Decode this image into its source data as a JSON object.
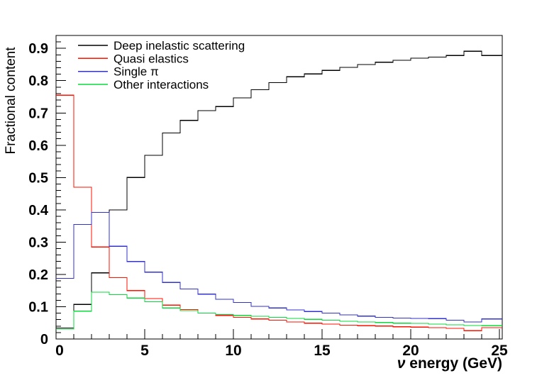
{
  "chart_data": {
    "type": "line",
    "subtype": "step-histogram-outlines",
    "title": "",
    "xlabel": "ν energy (GeV)",
    "xlabel_nu": "ν",
    "xlabel_rest": " energy (GeV)",
    "ylabel": "Fractional content",
    "xlim": [
      0,
      25.16
    ],
    "ylim": [
      0,
      0.94
    ],
    "grid": false,
    "legend_position": "top-left-inside",
    "bin_width_gev": 1,
    "bin_edges_start": 0,
    "x_major_ticks": [
      0,
      5,
      10,
      15,
      20,
      25
    ],
    "x_major_tick_labels": [
      "0",
      "5",
      "10",
      "15",
      "20",
      "25"
    ],
    "x_minor_tick_step": 1,
    "y_major_ticks": [
      0,
      0.1,
      0.2,
      0.3,
      0.4,
      0.5,
      0.6,
      0.7,
      0.8,
      0.9
    ],
    "y_major_tick_labels": [
      "0",
      "0.1",
      "0.2",
      "0.3",
      "0.4",
      "0.5",
      "0.6",
      "0.7",
      "0.8",
      "0.9"
    ],
    "y_minor_tick_step": 0.02,
    "series": [
      {
        "name": "Deep inelastic scattering",
        "color": "#000000",
        "values": [
          0.034,
          0.107,
          0.205,
          0.4,
          0.5,
          0.569,
          0.638,
          0.677,
          0.707,
          0.72,
          0.747,
          0.772,
          0.794,
          0.812,
          0.821,
          0.832,
          0.841,
          0.85,
          0.857,
          0.863,
          0.87,
          0.873,
          0.878,
          0.891,
          0.878
        ]
      },
      {
        "name": "Quasi elastics",
        "color": "#ff1200",
        "values": [
          0.755,
          0.47,
          0.285,
          0.19,
          0.15,
          0.125,
          0.105,
          0.091,
          0.08,
          0.073,
          0.067,
          0.062,
          0.058,
          0.053,
          0.049,
          0.046,
          0.043,
          0.041,
          0.04,
          0.038,
          0.037,
          0.035,
          0.033,
          0.026,
          0.035
        ]
      },
      {
        "name": "Single π",
        "color": "#3232cd",
        "values": [
          0.188,
          0.355,
          0.392,
          0.287,
          0.24,
          0.207,
          0.175,
          0.155,
          0.139,
          0.123,
          0.113,
          0.101,
          0.096,
          0.09,
          0.085,
          0.08,
          0.075,
          0.071,
          0.067,
          0.065,
          0.064,
          0.063,
          0.058,
          0.053,
          0.062
        ]
      },
      {
        "name": "Other interactions",
        "color": "#0cd83e",
        "values": [
          0.031,
          0.086,
          0.145,
          0.137,
          0.127,
          0.115,
          0.096,
          0.088,
          0.08,
          0.076,
          0.073,
          0.07,
          0.067,
          0.064,
          0.061,
          0.058,
          0.055,
          0.053,
          0.051,
          0.049,
          0.048,
          0.046,
          0.044,
          0.042,
          0.041
        ]
      }
    ]
  }
}
